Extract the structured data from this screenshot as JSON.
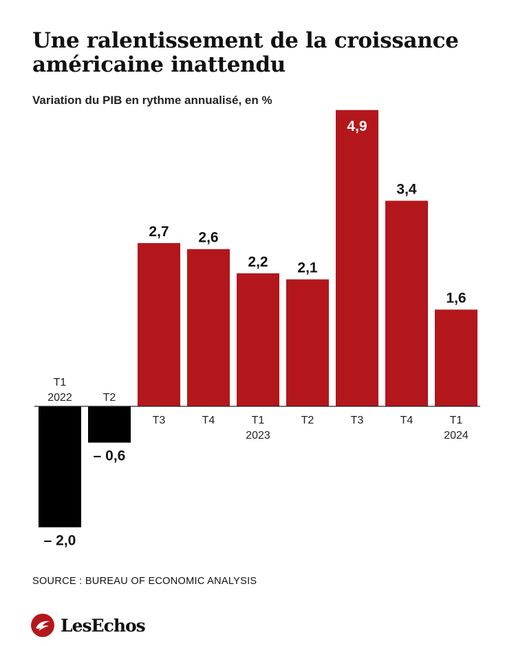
{
  "title": "Une ralentissement de la croissance américaine inattendu",
  "subtitle": "Variation du PIB en rythme annualisé, en %",
  "source": "SOURCE : BUREAU OF ECONOMIC ANALYSIS",
  "brand": "LesEchos",
  "colors": {
    "positive": "#b3171c",
    "negative": "#000000",
    "label_on_bar": "#ffffff",
    "text": "#111111",
    "axis": "#222222"
  },
  "chart_data": {
    "type": "bar",
    "categories": [
      [
        "T1",
        "2022"
      ],
      [
        "T2"
      ],
      [
        "T3"
      ],
      [
        "T4"
      ],
      [
        "T1",
        "2023"
      ],
      [
        "T2"
      ],
      [
        "T3"
      ],
      [
        "T4"
      ],
      [
        "T1",
        "2024"
      ]
    ],
    "values": [
      -2.0,
      -0.6,
      2.7,
      2.6,
      2.2,
      2.1,
      4.9,
      3.4,
      1.6
    ],
    "value_labels": [
      "– 2,0",
      "– 0,6",
      "2,7",
      "2,6",
      "2,2",
      "2,1",
      "4,9",
      "3,4",
      "1,6"
    ],
    "ylabel": "Variation du PIB en rythme annualisé, en %",
    "ylim": [
      -2.0,
      4.9
    ],
    "grid": false,
    "legend": "none"
  }
}
